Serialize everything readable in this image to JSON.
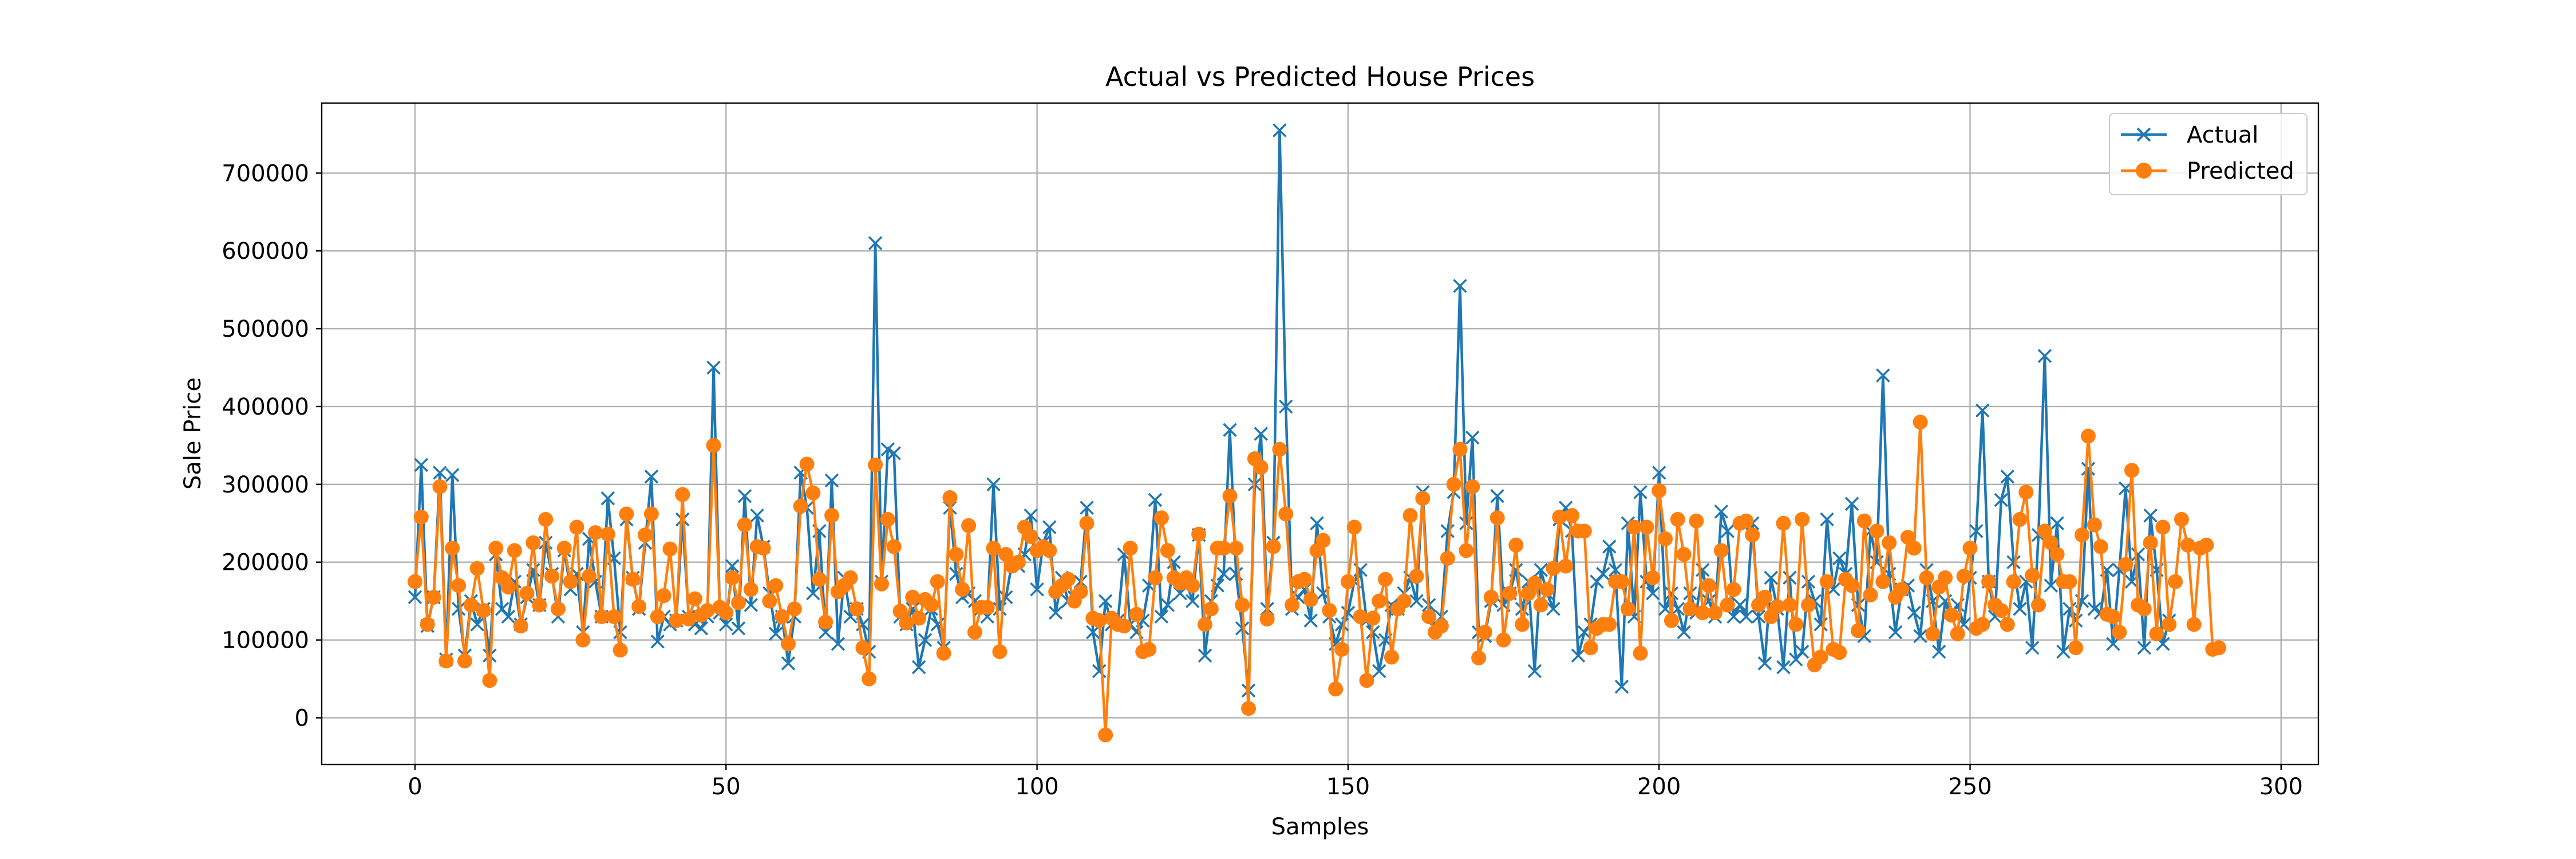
{
  "chart_data": {
    "type": "line",
    "title": "Actual vs Predicted House Prices",
    "xlabel": "Samples",
    "ylabel": "Sale Price",
    "xlim": [
      -15,
      306
    ],
    "ylim": [
      -60000,
      790000
    ],
    "xticks": [
      0,
      50,
      100,
      150,
      200,
      250,
      300
    ],
    "yticks": [
      0,
      100000,
      200000,
      300000,
      400000,
      500000,
      600000,
      700000
    ],
    "grid": true,
    "legend_position": "top-right",
    "series": [
      {
        "name": "Actual",
        "color": "#1f77b4",
        "marker": "x",
        "values": [
          155000,
          325000,
          118000,
          155000,
          315000,
          75000,
          312000,
          140000,
          80000,
          150000,
          120000,
          140000,
          80000,
          210000,
          140000,
          130000,
          175000,
          120000,
          155000,
          190000,
          145000,
          225000,
          185000,
          130000,
          215000,
          165000,
          185000,
          110000,
          230000,
          175000,
          130000,
          282000,
          205000,
          110000,
          255000,
          180000,
          140000,
          225000,
          310000,
          98000,
          130000,
          120000,
          125000,
          255000,
          130000,
          120000,
          115000,
          130000,
          450000,
          135000,
          120000,
          195000,
          115000,
          285000,
          145000,
          260000,
          220000,
          160000,
          108000,
          130000,
          70000,
          130000,
          315000,
          270000,
          160000,
          240000,
          110000,
          305000,
          95000,
          180000,
          130000,
          140000,
          120000,
          85000,
          610000,
          175000,
          345000,
          340000,
          130000,
          120000,
          140000,
          65000,
          100000,
          140000,
          120000,
          90000,
          270000,
          185000,
          155000,
          160000,
          150000,
          140000,
          130000,
          300000,
          140000,
          155000,
          200000,
          195000,
          210000,
          260000,
          165000,
          225000,
          245000,
          135000,
          180000,
          150000,
          155000,
          175000,
          270000,
          110000,
          60000,
          150000,
          120000,
          125000,
          210000,
          120000,
          110000,
          125000,
          170000,
          280000,
          130000,
          145000,
          200000,
          160000,
          175000,
          150000,
          235000,
          80000,
          150000,
          170000,
          185000,
          370000,
          185000,
          115000,
          35000,
          300000,
          365000,
          140000,
          225000,
          755000,
          400000,
          140000,
          155000,
          165000,
          125000,
          250000,
          160000,
          130000,
          95000,
          120000,
          135000,
          175000,
          190000,
          125000,
          110000,
          60000,
          100000,
          145000,
          140000,
          160000,
          180000,
          150000,
          290000,
          145000,
          115000,
          130000,
          240000,
          290000,
          555000,
          250000,
          360000,
          110000,
          105000,
          150000,
          285000,
          145000,
          160000,
          190000,
          140000,
          175000,
          60000,
          190000,
          160000,
          140000,
          255000,
          270000,
          240000,
          80000,
          110000,
          120000,
          175000,
          185000,
          220000,
          190000,
          40000,
          250000,
          130000,
          290000,
          175000,
          160000,
          315000,
          140000,
          160000,
          140000,
          110000,
          160000,
          135000,
          190000,
          150000,
          130000,
          265000,
          240000,
          130000,
          145000,
          130000,
          250000,
          130000,
          70000,
          180000,
          140000,
          65000,
          180000,
          75000,
          85000,
          175000,
          150000,
          120000,
          255000,
          165000,
          205000,
          185000,
          275000,
          145000,
          105000,
          240000,
          200000,
          440000,
          185000,
          110000,
          165000,
          170000,
          135000,
          105000,
          190000,
          150000,
          85000,
          150000,
          135000,
          145000,
          120000,
          180000,
          240000,
          395000,
          175000,
          130000,
          280000,
          310000,
          200000,
          140000,
          175000,
          90000,
          235000,
          465000,
          170000,
          250000,
          85000,
          140000,
          125000,
          150000,
          320000,
          140000,
          135000,
          190000,
          95000,
          190000,
          295000,
          175000,
          210000,
          90000,
          260000,
          190000,
          95000,
          125000
        ]
      },
      {
        "name": "Predicted",
        "color": "#ff7f0e",
        "marker": "o",
        "values": [
          175000,
          258000,
          120000,
          155000,
          297000,
          73000,
          218000,
          170000,
          73000,
          145000,
          192000,
          138000,
          48000,
          218000,
          180000,
          168000,
          215000,
          118000,
          160000,
          225000,
          145000,
          255000,
          182000,
          140000,
          218000,
          175000,
          245000,
          100000,
          182000,
          238000,
          130000,
          236000,
          130000,
          87000,
          262000,
          178000,
          143000,
          235000,
          262000,
          130000,
          157000,
          217000,
          125000,
          287000,
          127000,
          153000,
          132000,
          138000,
          350000,
          142000,
          135000,
          180000,
          148000,
          248000,
          165000,
          220000,
          218000,
          150000,
          170000,
          130000,
          95000,
          140000,
          272000,
          326000,
          289000,
          178000,
          123000,
          260000,
          162000,
          170000,
          180000,
          140000,
          90000,
          50000,
          325000,
          172000,
          255000,
          220000,
          137000,
          122000,
          155000,
          128000,
          152000,
          145000,
          175000,
          83000,
          283000,
          210000,
          165000,
          247000,
          110000,
          142000,
          142000,
          218000,
          85000,
          210000,
          195000,
          200000,
          245000,
          233000,
          215000,
          220000,
          215000,
          162000,
          170000,
          178000,
          150000,
          162000,
          250000,
          128000,
          125000,
          -22000,
          128000,
          120000,
          118000,
          218000,
          133000,
          85000,
          88000,
          180000,
          257000,
          215000,
          180000,
          173000,
          180000,
          170000,
          236000,
          120000,
          140000,
          218000,
          218000,
          285000,
          218000,
          145000,
          12000,
          333000,
          322000,
          127000,
          220000,
          345000,
          262000,
          145000,
          175000,
          178000,
          152000,
          215000,
          228000,
          138000,
          37000,
          88000,
          175000,
          245000,
          130000,
          48000,
          128000,
          150000,
          178000,
          78000,
          140000,
          150000,
          260000,
          182000,
          282000,
          130000,
          110000,
          118000,
          205000,
          300000,
          345000,
          215000,
          297000,
          77000,
          110000,
          155000,
          257000,
          100000,
          160000,
          222000,
          120000,
          160000,
          173000,
          145000,
          165000,
          192000,
          258000,
          195000,
          260000,
          240000,
          240000,
          90000,
          115000,
          120000,
          120000,
          175000,
          175000,
          140000,
          245000,
          83000,
          245000,
          180000,
          292000,
          230000,
          125000,
          255000,
          210000,
          140000,
          253000,
          135000,
          170000,
          135000,
          215000,
          145000,
          165000,
          250000,
          253000,
          235000,
          145000,
          155000,
          130000,
          143000,
          250000,
          145000,
          120000,
          255000,
          145000,
          68000,
          78000,
          175000,
          88000,
          84000,
          178000,
          170000,
          112000,
          253000,
          158000,
          240000,
          175000,
          225000,
          155000,
          165000,
          232000,
          218000,
          380000,
          180000,
          108000,
          168000,
          180000,
          132000,
          108000,
          182000,
          218000,
          115000,
          120000,
          175000,
          145000,
          138000,
          120000,
          175000,
          255000,
          290000,
          183000,
          145000,
          240000,
          225000,
          210000,
          175000,
          175000,
          90000,
          235000,
          362000,
          248000,
          220000,
          133000,
          130000,
          110000,
          197000,
          318000,
          145000,
          140000,
          225000,
          108000,
          245000,
          120000,
          175000,
          255000,
          222000,
          120000,
          218000,
          222000,
          88000,
          90000
        ]
      }
    ]
  }
}
